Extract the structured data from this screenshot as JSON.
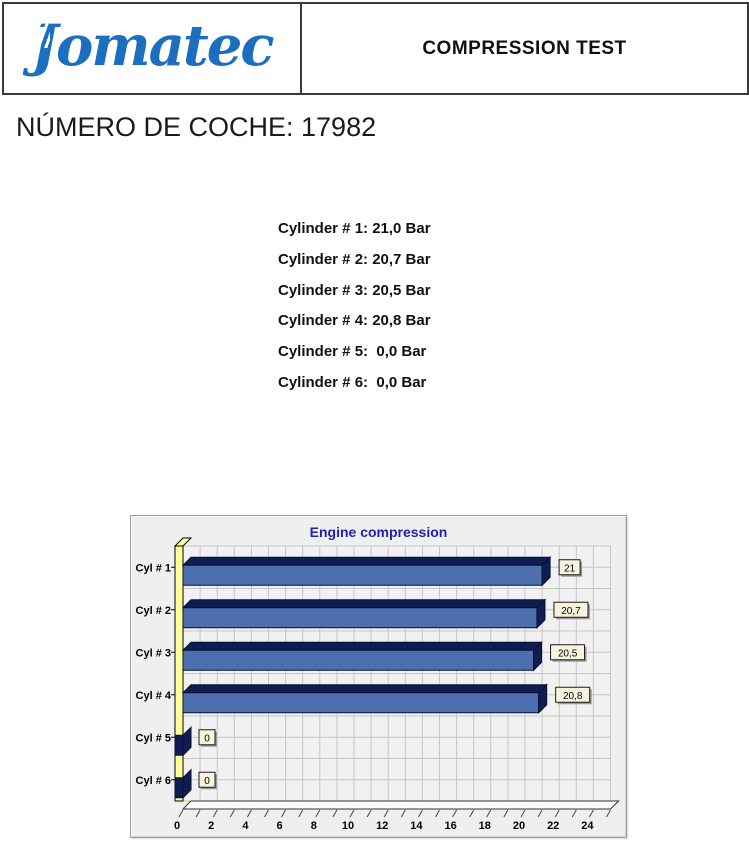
{
  "header": {
    "logo_j": "J",
    "logo_rest": "omatec",
    "logo_color": "#1C6FBE",
    "title": "COMPRESSION TEST"
  },
  "car_number": "NÚMERO DE COCHE: 17982",
  "readings": {
    "items": [
      "Cylinder # 1: 21,0 Bar",
      "Cylinder # 2: 20,7 Bar",
      "Cylinder # 3: 20,5 Bar",
      "Cylinder # 4: 20,8 Bar",
      "Cylinder # 5:  0,0 Bar",
      "Cylinder # 6:  0,0 Bar"
    ]
  },
  "chart_data": {
    "type": "bar",
    "orientation": "horizontal",
    "style_3d": true,
    "title": "Engine compression",
    "categories": [
      "Cyl # 1",
      "Cyl # 2",
      "Cyl # 3",
      "Cyl # 4",
      "Cyl # 5",
      "Cyl # 6"
    ],
    "values": [
      21,
      20.7,
      20.5,
      20.8,
      0,
      0
    ],
    "value_labels": [
      "21",
      "20,7",
      "20,5",
      "20,8",
      "0",
      "0"
    ],
    "xlabel": "",
    "ylabel": "",
    "xlim": [
      0,
      25
    ],
    "x_tick_labels": [
      0,
      2,
      4,
      6,
      8,
      10,
      12,
      14,
      16,
      18,
      20,
      22,
      24
    ],
    "x_minor_step": 1,
    "grid": true,
    "legend": "none",
    "colors": {
      "bar_front": "#4D6FAE",
      "bar_dark": "#101C52",
      "bar_stroke": "#06102E",
      "wall": "#FFFF9B",
      "panel_bg": "#EFEFEF",
      "plot_bg": "#F1F1F1",
      "grid": "#C6C6C6",
      "title": "#2222B2",
      "value_box": "#F7F3DC",
      "value_box_border": "#1A1A1A",
      "value_box_shadow": "#9A9A9A",
      "floor": "#FBFBFB"
    }
  }
}
